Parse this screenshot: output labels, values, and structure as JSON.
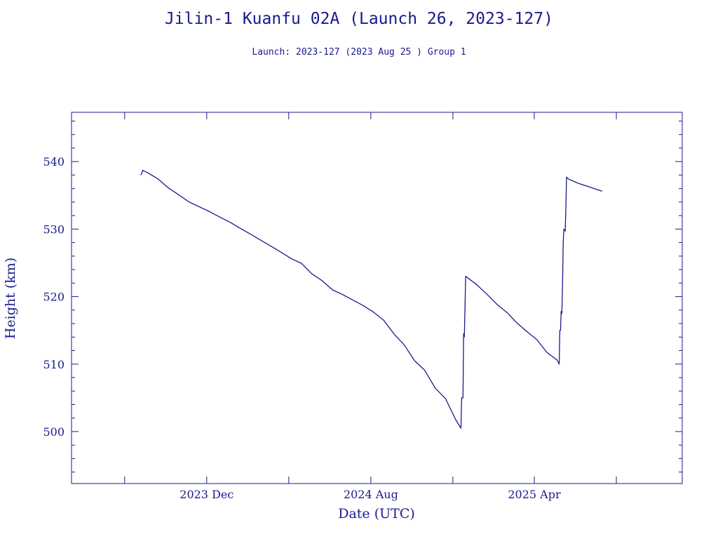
{
  "title": "Jilin-1 Kuanfu 02A (Launch 26, 2023-127)",
  "subtitle": "Launch: 2023-127  (2023 Aug 25 )  Group 1",
  "colors": {
    "ink": "#1a1a8c",
    "background": "#ffffff"
  },
  "chart_data": {
    "type": "line",
    "title": "Jilin-1 Kuanfu 02A (Launch 26, 2023-127)",
    "subtitle": "Launch: 2023-127  (2023 Aug 25 )  Group 1",
    "xlabel": "Date (UTC)",
    "ylabel": "Height (km)",
    "xlim": [
      "2023-05-14",
      "2025-11-07"
    ],
    "ylim": [
      492.3,
      547.3
    ],
    "grid": false,
    "legend": "none",
    "x_ticks": [
      {
        "date": "2023-12-01",
        "label": "2023 Dec"
      },
      {
        "date": "2024-08-01",
        "label": "2024 Aug"
      },
      {
        "date": "2025-04-01",
        "label": "2025 Apr"
      }
    ],
    "x_minor_ticks": [
      "2023-08-01",
      "2023-12-01",
      "2024-04-01",
      "2024-08-01",
      "2024-12-01",
      "2025-04-01",
      "2025-08-01"
    ],
    "y_ticks": [
      500,
      510,
      520,
      530,
      540
    ],
    "y_minor_step": 2,
    "series": [
      {
        "points": [
          [
            "2023-08-25",
            538.0
          ],
          [
            "2023-08-26",
            538.2
          ],
          [
            "2023-08-28",
            538.7
          ],
          [
            "2023-09-05",
            538.3
          ],
          [
            "2023-09-20",
            537.4
          ],
          [
            "2023-10-05",
            536.1
          ],
          [
            "2023-10-20",
            535.1
          ],
          [
            "2023-11-05",
            534.0
          ],
          [
            "2023-11-20",
            533.3
          ],
          [
            "2023-12-05",
            532.6
          ],
          [
            "2023-12-20",
            531.8
          ],
          [
            "2024-01-05",
            531.0
          ],
          [
            "2024-01-20",
            530.1
          ],
          [
            "2024-02-05",
            529.2
          ],
          [
            "2024-02-20",
            528.3
          ],
          [
            "2024-03-05",
            527.5
          ],
          [
            "2024-03-20",
            526.6
          ],
          [
            "2024-04-05",
            525.6
          ],
          [
            "2024-04-20",
            524.9
          ],
          [
            "2024-05-05",
            523.4
          ],
          [
            "2024-05-20",
            522.4
          ],
          [
            "2024-06-05",
            521.0
          ],
          [
            "2024-06-20",
            520.3
          ],
          [
            "2024-07-05",
            519.5
          ],
          [
            "2024-07-20",
            518.7
          ],
          [
            "2024-08-05",
            517.7
          ],
          [
            "2024-08-20",
            516.5
          ],
          [
            "2024-09-05",
            514.4
          ],
          [
            "2024-09-20",
            512.8
          ],
          [
            "2024-10-05",
            510.5
          ],
          [
            "2024-10-20",
            509.1
          ],
          [
            "2024-11-05",
            506.4
          ],
          [
            "2024-11-20",
            504.9
          ],
          [
            "2024-12-05",
            501.8
          ],
          [
            "2024-12-13",
            500.5
          ],
          [
            "2024-12-14",
            505.0
          ],
          [
            "2024-12-16",
            505.0
          ],
          [
            "2024-12-17",
            514.5
          ],
          [
            "2024-12-18",
            514.0
          ],
          [
            "2024-12-19",
            518.5
          ],
          [
            "2024-12-20",
            523.0
          ],
          [
            "2025-01-05",
            521.8
          ],
          [
            "2025-01-20",
            520.4
          ],
          [
            "2025-02-05",
            518.8
          ],
          [
            "2025-02-20",
            517.6
          ],
          [
            "2025-03-05",
            516.2
          ],
          [
            "2025-03-20",
            514.9
          ],
          [
            "2025-04-05",
            513.6
          ],
          [
            "2025-04-20",
            511.7
          ],
          [
            "2025-05-05",
            510.6
          ],
          [
            "2025-05-08",
            510.0
          ],
          [
            "2025-05-09",
            515.0
          ],
          [
            "2025-05-10",
            515.0
          ],
          [
            "2025-05-11",
            517.8
          ],
          [
            "2025-05-12",
            517.5
          ],
          [
            "2025-05-13",
            521.8
          ],
          [
            "2025-05-14",
            528.0
          ],
          [
            "2025-05-15",
            530.0
          ],
          [
            "2025-05-17",
            529.7
          ],
          [
            "2025-05-18",
            533.0
          ],
          [
            "2025-05-19",
            537.7
          ],
          [
            "2025-05-22",
            537.4
          ],
          [
            "2025-06-05",
            536.8
          ],
          [
            "2025-06-20",
            536.3
          ],
          [
            "2025-07-05",
            535.8
          ],
          [
            "2025-07-11",
            535.6
          ]
        ]
      }
    ]
  }
}
